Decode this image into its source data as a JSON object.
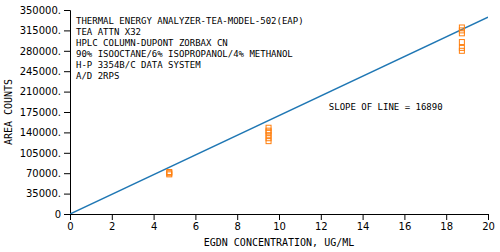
{
  "chart_data": {
    "type": "scatter",
    "xlabel": "EGDN CONCENTRATION, UG/ML",
    "ylabel": "AREA COUNTS",
    "annotations": [
      "THERMAL ENERGY ANALYZER-TEA-MODEL-502(EAP)",
      "TEA ATTN X32",
      "HPLC COLUMN-DUPONT ZORBAX CN",
      "90% ISOOCTANE/6% ISOPROPANOL/4% METHANOL",
      "H-P 3354B/C DATA SYSTEM",
      "A/D 2RPS"
    ],
    "xlim": [
      0,
      20
    ],
    "ylim": [
      0,
      350000
    ],
    "xticks": [
      0,
      2,
      4,
      6,
      8,
      10,
      12,
      14,
      16,
      18,
      20
    ],
    "yticks": [
      0,
      {
        "value": 35000,
        "label": "35000."
      },
      {
        "value": 70000,
        "label": "70000."
      },
      {
        "value": 105000,
        "label": "105000."
      },
      {
        "value": 140000,
        "label": "140000."
      },
      {
        "value": 175000,
        "label": "175000."
      },
      {
        "value": 210000,
        "label": "210000."
      },
      {
        "value": 245000,
        "label": "245000."
      },
      {
        "value": 280000,
        "label": "280000."
      },
      {
        "value": 315000,
        "label": "315000."
      },
      {
        "value": 350000,
        "label": "350000."
      }
    ],
    "series": [
      {
        "name": "SLOPE OF LINE = 16890",
        "type": "line",
        "x": [
          0,
          20
        ],
        "values": [
          0,
          337800
        ]
      },
      {
        "type": "scatter",
        "marker": "square",
        "x": [
          4.75,
          4.75,
          4.75,
          9.5,
          9.5,
          9.5,
          9.5,
          9.5,
          9.5,
          18.75,
          18.75,
          18.75,
          18.75,
          18.75,
          18.75
        ],
        "values": [
          68000,
          70000,
          72000,
          125000,
          130000,
          135000,
          140000,
          143000,
          148000,
          280000,
          285000,
          295000,
          310000,
          315000,
          320000
        ]
      }
    ]
  }
}
